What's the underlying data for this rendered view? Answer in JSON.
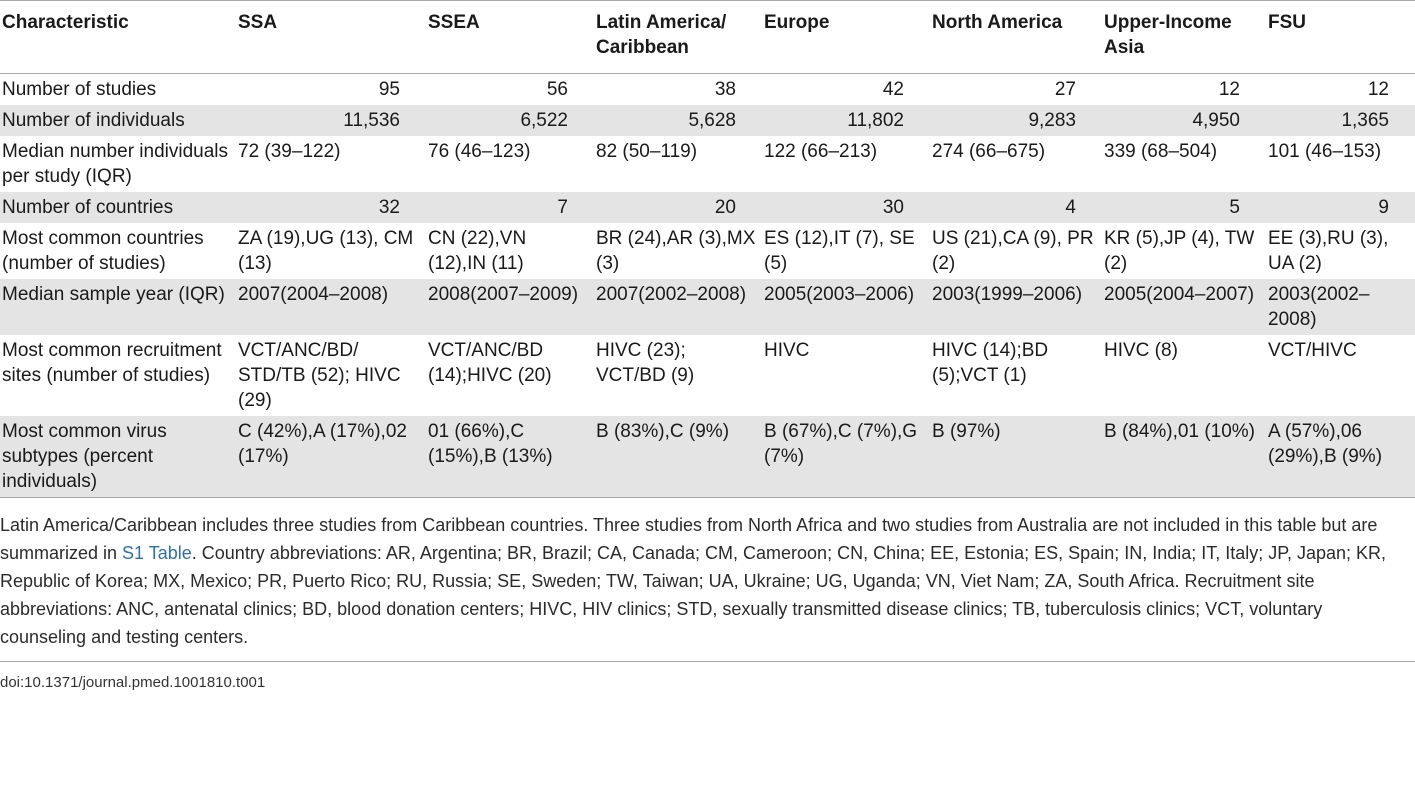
{
  "table": {
    "headers": [
      "Characteristic",
      "SSA",
      "SSEA",
      "Latin America/ Caribbean",
      "Europe",
      "North America",
      "Upper-Income Asia",
      "FSU"
    ],
    "rows": [
      {
        "label": "Number of studies",
        "numeric": true,
        "cells": [
          "95",
          "56",
          "38",
          "42",
          "27",
          "12",
          "12"
        ]
      },
      {
        "label": "Number of individuals",
        "numeric": true,
        "cells": [
          "11,536",
          "6,522",
          "5,628",
          "11,802",
          "9,283",
          "4,950",
          "1,365"
        ]
      },
      {
        "label": "Median number individuals per study (IQR)",
        "numeric": false,
        "cells": [
          "72 (39–122)",
          "76 (46–123)",
          "82 (50–119)",
          "122 (66–213)",
          "274 (66–675)",
          "339 (68–504)",
          "101 (46–153)"
        ]
      },
      {
        "label": "Number of countries",
        "numeric": true,
        "cells": [
          "32",
          "7",
          "20",
          "30",
          "4",
          "5",
          "9"
        ]
      },
      {
        "label": "Most common countries (number of studies)",
        "numeric": false,
        "cells": [
          "ZA (19),UG (13), CM (13)",
          "CN (22),VN (12),IN (11)",
          "BR (24),AR (3),MX (3)",
          "ES (12),IT (7), SE (5)",
          "US (21),CA (9), PR (2)",
          "KR (5),JP (4), TW (2)",
          "EE (3),RU (3), UA (2)"
        ]
      },
      {
        "label": "Median sample year (IQR)",
        "numeric": false,
        "cells": [
          "2007(2004–2008)",
          "2008(2007–2009)",
          "2007(2002–2008)",
          "2005(2003–2006)",
          "2003(1999–2006)",
          "2005(2004–2007)",
          "2003(2002–2008)"
        ]
      },
      {
        "label": "Most common recruitment sites (number of studies)",
        "numeric": false,
        "cells": [
          "VCT/ANC/BD/ STD/TB (52); HIVC (29)",
          "VCT/ANC/BD (14);HIVC (20)",
          "HIVC (23); VCT/BD (9)",
          "HIVC",
          "HIVC (14);BD (5);VCT (1)",
          "HIVC (8)",
          "VCT/HIVC"
        ]
      },
      {
        "label": "Most common virus subtypes (percent individuals)",
        "numeric": false,
        "cells": [
          "C (42%),A (17%),02 (17%)",
          "01 (66%),C (15%),B (13%)",
          "B (83%),C (9%)",
          "B (67%),C (7%),G (7%)",
          "B (97%)",
          "B (84%),01 (10%)",
          "A (57%),06 (29%),B (9%)"
        ]
      }
    ]
  },
  "footnote": {
    "text_before_link": "Latin America/Caribbean includes three studies from Caribbean countries. Three studies from North Africa and two studies from Australia are not included in this table but are summarized in ",
    "link_text": "S1 Table",
    "text_after_link": ". Country abbreviations: AR, Argentina; BR, Brazil; CA, Canada; CM, Cameroon; CN, China; EE, Estonia; ES, Spain; IN, India; IT, Italy; JP, Japan; KR, Republic of Korea; MX, Mexico; PR, Puerto Rico; RU, Russia; SE, Sweden; TW, Taiwan; UA, Ukraine; UG, Uganda; VN, Viet Nam; ZA, South Africa. Recruitment site abbreviations: ANC, antenatal clinics; BD, blood donation centers; HIVC, HIV clinics; STD, sexually transmitted disease clinics; TB, tuberculosis clinics; VCT, voluntary counseling and testing centers."
  },
  "doi": "doi:10.1371/journal.pmed.1001810.t001",
  "colors": {
    "header_rule": "#a8a8a8",
    "shaded_row": "#e4e4e4",
    "link": "#2f6fb0"
  }
}
